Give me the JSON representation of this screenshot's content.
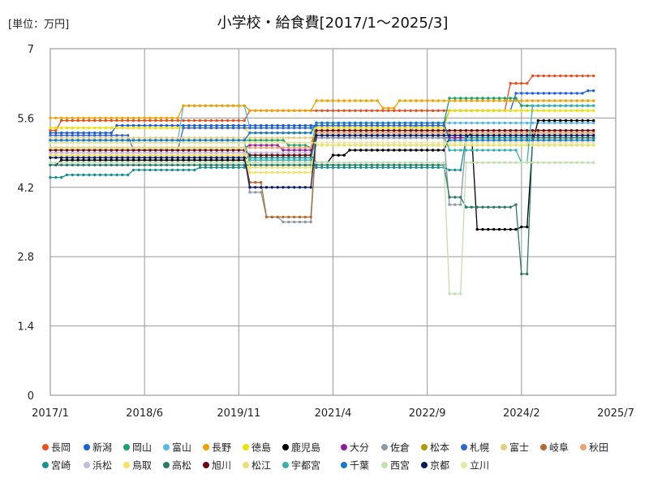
{
  "chart_data": {
    "type": "line",
    "title": "小学校・給食費[2017/1～2025/3]",
    "unit_label": "[単位：万円]",
    "xlabel": "",
    "ylabel": "",
    "ylim": [
      0,
      7
    ],
    "y_ticks": [
      0,
      1.4,
      2.8,
      4.2,
      5.6,
      7
    ],
    "y_tick_labels": [
      "0",
      "1.4",
      "2.8",
      "4.2",
      "5.6",
      "7"
    ],
    "x_tick_labels": [
      "2017/1",
      "2018/6",
      "2019/11",
      "2021/4",
      "2022/9",
      "2024/2",
      "2025/7"
    ],
    "x_range": [
      "2017/1",
      "2025/7"
    ],
    "x_start": "2017/1",
    "x_end": "2025/3",
    "grid": true,
    "legend_position": "bottom",
    "series": [
      {
        "name": "長岡",
        "color": "#e8501e",
        "values": [
          {
            "from": "2017/1",
            "to": "2017/2",
            "y": 5.35
          },
          {
            "from": "2017/3",
            "to": "2019/12",
            "y": 5.55
          },
          {
            "from": "2020/1",
            "to": "2023/11",
            "y": 5.75
          },
          {
            "from": "2023/12",
            "to": "2024/3",
            "y": 6.3
          },
          {
            "from": "2024/4",
            "to": "2025/3",
            "y": 6.45
          }
        ]
      },
      {
        "name": "新潟",
        "color": "#1f5fd6",
        "values": [
          {
            "from": "2017/1",
            "to": "2017/12",
            "y": 5.3
          },
          {
            "from": "2018/1",
            "to": "2022/12",
            "y": 5.45
          },
          {
            "from": "2023/1",
            "to": "2023/12",
            "y": 5.75
          },
          {
            "from": "2024/1",
            "to": "2025/1",
            "y": 6.1
          },
          {
            "from": "2025/2",
            "to": "2025/3",
            "y": 6.15
          }
        ]
      },
      {
        "name": "岡山",
        "color": "#1aa06a",
        "values": [
          {
            "from": "2017/1",
            "to": "2020/7",
            "y": 5.15
          },
          {
            "from": "2020/8",
            "to": "2020/11",
            "y": 5.05
          },
          {
            "from": "2020/12",
            "to": "2020/12",
            "y": 5.0
          },
          {
            "from": "2021/1",
            "to": "2022/12",
            "y": 5.5
          },
          {
            "from": "2023/1",
            "to": "2024/1",
            "y": 6.0
          },
          {
            "from": "2024/2",
            "to": "2025/3",
            "y": 5.85
          }
        ]
      },
      {
        "name": "富山",
        "color": "#55b8e8",
        "values": [
          {
            "from": "2017/1",
            "to": "2018/12",
            "y": 5.15
          },
          {
            "from": "2019/1",
            "to": "2019/12",
            "y": 5.85
          },
          {
            "from": "2020/1",
            "to": "2020/12",
            "y": 5.4
          },
          {
            "from": "2021/1",
            "to": "2022/6",
            "y": 5.3
          },
          {
            "from": "2022/7",
            "to": "2025/3",
            "y": 5.5
          }
        ]
      },
      {
        "name": "長野",
        "color": "#f0a000",
        "values": [
          {
            "from": "2017/1",
            "to": "2018/12",
            "y": 5.6
          },
          {
            "from": "2019/1",
            "to": "2019/12",
            "y": 5.85
          },
          {
            "from": "2020/1",
            "to": "2020/12",
            "y": 5.75
          },
          {
            "from": "2021/1",
            "to": "2021/12",
            "y": 5.95
          },
          {
            "from": "2022/1",
            "to": "2022/3",
            "y": 5.8
          },
          {
            "from": "2022/4",
            "to": "2025/3",
            "y": 5.95
          }
        ]
      },
      {
        "name": "徳島",
        "color": "#f0e000",
        "values": [
          {
            "from": "2017/1",
            "to": "2019/12",
            "y": 5.4
          },
          {
            "from": "2020/1",
            "to": "2020/12",
            "y": 5.3
          },
          {
            "from": "2021/1",
            "to": "2022/12",
            "y": 5.4
          },
          {
            "from": "2023/1",
            "to": "2025/3",
            "y": 5.75
          }
        ]
      },
      {
        "name": "鹿児島",
        "color": "#000000",
        "values": [
          {
            "from": "2017/1",
            "to": "2017/2",
            "y": 4.65
          },
          {
            "from": "2017/3",
            "to": "2019/12",
            "y": 4.75
          },
          {
            "from": "2020/1",
            "to": "2020/12",
            "y": 4.85
          },
          {
            "from": "2021/1",
            "to": "2021/3",
            "y": 4.7
          },
          {
            "from": "2021/4",
            "to": "2021/6",
            "y": 4.85
          },
          {
            "from": "2021/7",
            "to": "2022/12",
            "y": 4.95
          },
          {
            "from": "2023/1",
            "to": "2023/4",
            "y": 5.2
          },
          {
            "from": "2023/5",
            "to": "2023/5",
            "y": 5.3
          },
          {
            "from": "2023/6",
            "to": "2024/1",
            "y": 3.35
          },
          {
            "from": "2024/2",
            "to": "2024/3",
            "y": 3.4
          },
          {
            "from": "2024/4",
            "to": "2024/4",
            "y": 5.1
          },
          {
            "from": "2024/5",
            "to": "2025/3",
            "y": 5.55
          }
        ]
      },
      {
        "name": "大分",
        "color": "#8e1ea0",
        "values": [
          {
            "from": "2017/1",
            "to": "2019/12",
            "y": 5.0
          },
          {
            "from": "2020/1",
            "to": "2020/6",
            "y": 5.05
          },
          {
            "from": "2020/7",
            "to": "2020/12",
            "y": 4.95
          },
          {
            "from": "2021/1",
            "to": "2025/3",
            "y": 5.2
          }
        ]
      },
      {
        "name": "佐倉",
        "color": "#8c99a6",
        "values": [
          {
            "from": "2017/1",
            "to": "2019/12",
            "y": 4.9
          },
          {
            "from": "2020/1",
            "to": "2020/3",
            "y": 4.1
          },
          {
            "from": "2020/4",
            "to": "2020/6",
            "y": 3.6
          },
          {
            "from": "2020/7",
            "to": "2020/12",
            "y": 3.5
          },
          {
            "from": "2021/1",
            "to": "2022/12",
            "y": 5.2
          },
          {
            "from": "2023/1",
            "to": "2023/3",
            "y": 3.85
          },
          {
            "from": "2023/4",
            "to": "2025/3",
            "y": 5.2
          }
        ]
      },
      {
        "name": "松本",
        "color": "#b09a00",
        "values": [
          {
            "from": "2017/1",
            "to": "2019/12",
            "y": 5.1
          },
          {
            "from": "2020/1",
            "to": "2020/12",
            "y": 5.1
          },
          {
            "from": "2021/1",
            "to": "2025/3",
            "y": 5.3
          }
        ]
      },
      {
        "name": "札幌",
        "color": "#3366cc",
        "values": [
          {
            "from": "2017/1",
            "to": "2018/3",
            "y": 5.25
          },
          {
            "from": "2018/4",
            "to": "2018/12",
            "y": 4.95
          },
          {
            "from": "2019/1",
            "to": "2020/12",
            "y": 5.4
          },
          {
            "from": "2021/1",
            "to": "2022/12",
            "y": 5.45
          },
          {
            "from": "2023/1",
            "to": "2025/3",
            "y": 5.25
          }
        ]
      },
      {
        "name": "富士",
        "color": "#e0d080",
        "values": [
          {
            "from": "2017/1",
            "to": "2020/12",
            "y": 5.2
          },
          {
            "from": "2021/1",
            "to": "2025/3",
            "y": 5.25
          }
        ]
      },
      {
        "name": "岐阜",
        "color": "#b06a30",
        "values": [
          {
            "from": "2017/1",
            "to": "2019/12",
            "y": 4.85
          },
          {
            "from": "2020/1",
            "to": "2020/3",
            "y": 4.3
          },
          {
            "from": "2020/4",
            "to": "2020/12",
            "y": 3.6
          },
          {
            "from": "2021/1",
            "to": "2025/3",
            "y": 5.3
          }
        ]
      },
      {
        "name": "秋田",
        "color": "#f0a070",
        "values": [
          {
            "from": "2017/1",
            "to": "2020/12",
            "y": 5.0
          },
          {
            "from": "2021/1",
            "to": "2025/3",
            "y": 5.3
          }
        ]
      },
      {
        "name": "宮崎",
        "color": "#1a9090",
        "values": [
          {
            "from": "2017/1",
            "to": "2017/3",
            "y": 4.4
          },
          {
            "from": "2017/4",
            "to": "2018/3",
            "y": 4.45
          },
          {
            "from": "2018/4",
            "to": "2019/3",
            "y": 4.55
          },
          {
            "from": "2019/4",
            "to": "2019/12",
            "y": 4.6
          },
          {
            "from": "2020/1",
            "to": "2020/12",
            "y": 4.8
          },
          {
            "from": "2021/1",
            "to": "2022/12",
            "y": 4.6
          },
          {
            "from": "2023/1",
            "to": "2023/3",
            "y": 4.55
          },
          {
            "from": "2023/4",
            "to": "2025/3",
            "y": 5.2
          }
        ]
      },
      {
        "name": "浜松",
        "color": "#c8b8e0",
        "values": [
          {
            "from": "2017/1",
            "to": "2020/12",
            "y": 4.9
          },
          {
            "from": "2021/1",
            "to": "2025/3",
            "y": 5.05
          }
        ]
      },
      {
        "name": "鳥取",
        "color": "#f8e060",
        "values": [
          {
            "from": "2017/1",
            "to": "2019/12",
            "y": 4.85
          },
          {
            "from": "2020/1",
            "to": "2020/12",
            "y": 4.5
          },
          {
            "from": "2021/1",
            "to": "2025/3",
            "y": 5.05
          }
        ]
      },
      {
        "name": "高松",
        "color": "#2a7a6a",
        "values": [
          {
            "from": "2017/1",
            "to": "2019/12",
            "y": 4.65
          },
          {
            "from": "2020/1",
            "to": "2020/12",
            "y": 4.65
          },
          {
            "from": "2021/1",
            "to": "2022/12",
            "y": 4.65
          },
          {
            "from": "2023/1",
            "to": "2023/3",
            "y": 4.0
          },
          {
            "from": "2023/4",
            "to": "2023/12",
            "y": 3.8
          },
          {
            "from": "2024/1",
            "to": "2024/1",
            "y": 3.85
          },
          {
            "from": "2024/2",
            "to": "2024/3",
            "y": 2.45
          },
          {
            "from": "2024/4",
            "to": "2025/3",
            "y": 5.2
          }
        ]
      },
      {
        "name": "旭川",
        "color": "#6a0a0a",
        "values": [
          {
            "from": "2017/1",
            "to": "2019/12",
            "y": 4.95
          },
          {
            "from": "2020/1",
            "to": "2020/12",
            "y": 4.85
          },
          {
            "from": "2021/1",
            "to": "2025/3",
            "y": 5.35
          }
        ]
      },
      {
        "name": "松江",
        "color": "#e8e070",
        "values": [
          {
            "from": "2017/1",
            "to": "2019/12",
            "y": 5.0
          },
          {
            "from": "2020/1",
            "to": "2020/12",
            "y": 4.6
          },
          {
            "from": "2021/1",
            "to": "2025/3",
            "y": 5.05
          }
        ]
      },
      {
        "name": "宇都宮",
        "color": "#3ab0b0",
        "values": [
          {
            "from": "2017/1",
            "to": "2019/12",
            "y": 5.1
          },
          {
            "from": "2020/1",
            "to": "2020/12",
            "y": 4.75
          },
          {
            "from": "2021/1",
            "to": "2022/12",
            "y": 5.25
          },
          {
            "from": "2023/1",
            "to": "2024/1",
            "y": 4.95
          },
          {
            "from": "2024/2",
            "to": "2024/3",
            "y": 4.7
          },
          {
            "from": "2024/4",
            "to": "2025/3",
            "y": 5.85
          }
        ]
      },
      {
        "name": "千葉",
        "color": "#1a78c8",
        "values": [
          {
            "from": "2017/1",
            "to": "2019/12",
            "y": 5.15
          },
          {
            "from": "2020/1",
            "to": "2020/12",
            "y": 5.3
          },
          {
            "from": "2021/1",
            "to": "2022/12",
            "y": 5.5
          },
          {
            "from": "2023/1",
            "to": "2025/3",
            "y": 5.15
          }
        ]
      },
      {
        "name": "西宮",
        "color": "#c0e0b0",
        "values": [
          {
            "from": "2017/1",
            "to": "2022/12",
            "y": 4.7
          },
          {
            "from": "2023/1",
            "to": "2023/3",
            "y": 2.05
          },
          {
            "from": "2023/4",
            "to": "2025/3",
            "y": 4.7
          }
        ]
      },
      {
        "name": "京都",
        "color": "#0a1a60",
        "values": [
          {
            "from": "2017/1",
            "to": "2019/12",
            "y": 4.8
          },
          {
            "from": "2020/1",
            "to": "2020/12",
            "y": 4.2
          },
          {
            "from": "2021/1",
            "to": "2025/3",
            "y": 5.25
          }
        ]
      },
      {
        "name": "立川",
        "color": "#e8e8a0",
        "values": [
          {
            "from": "2017/1",
            "to": "2025/3",
            "y": 5.1
          }
        ]
      }
    ]
  }
}
